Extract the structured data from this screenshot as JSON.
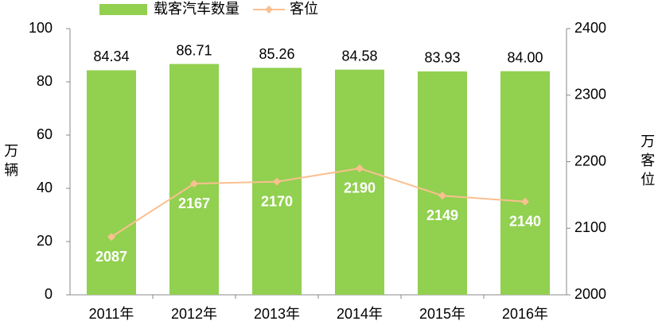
{
  "chart_data": {
    "type": "bar",
    "categories": [
      "2011年",
      "2012年",
      "2013年",
      "2014年",
      "2015年",
      "2016年"
    ],
    "y_label": "万辆",
    "y2_label": "万客位",
    "series": [
      {
        "name": "载客汽车数量",
        "type": "bar",
        "color": "#92d050",
        "values": [
          84.34,
          86.71,
          85.26,
          84.58,
          83.93,
          84.0
        ],
        "value_labels": [
          "84.34",
          "86.71",
          "85.26",
          "84.58",
          "83.93",
          "84.00"
        ]
      },
      {
        "name": "客位",
        "type": "line",
        "axis": "y2",
        "color": "#fac090",
        "values": [
          2087,
          2167,
          2170,
          2190,
          2149,
          2140
        ]
      }
    ],
    "ylim": [
      0,
      100
    ],
    "yticks": [
      0,
      20,
      40,
      60,
      80,
      100
    ],
    "y2lim": [
      2000,
      2400
    ],
    "y2ticks": [
      2000,
      2100,
      2200,
      2300,
      2400
    ]
  }
}
